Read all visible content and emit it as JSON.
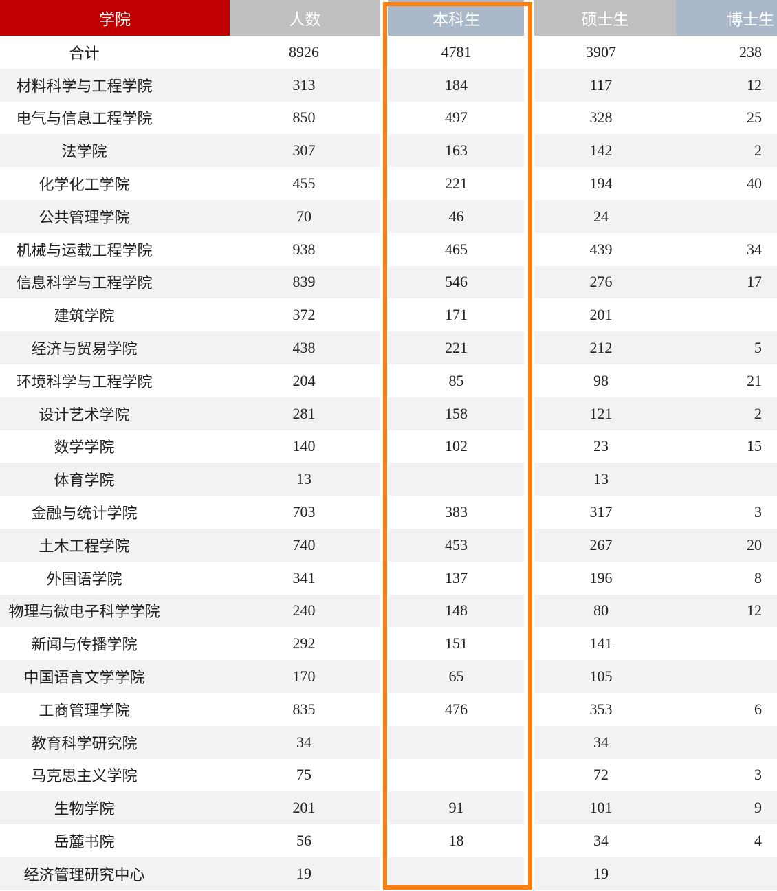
{
  "colors": {
    "header_college": "#c00000",
    "header_gray": "#bfbfbf",
    "header_blue": "#aab8ca",
    "highlight": "#ff7f0e",
    "row_alt": "#f2f2f2"
  },
  "headers": [
    "学院",
    "人数",
    "本科生",
    "硕士生",
    "博士生"
  ],
  "rows": [
    [
      "合计",
      "8926",
      "4781",
      "3907",
      "238"
    ],
    [
      "材料科学与工程学院",
      "313",
      "184",
      "117",
      "12"
    ],
    [
      "电气与信息工程学院",
      "850",
      "497",
      "328",
      "25"
    ],
    [
      "法学院",
      "307",
      "163",
      "142",
      "2"
    ],
    [
      "化学化工学院",
      "455",
      "221",
      "194",
      "40"
    ],
    [
      "公共管理学院",
      "70",
      "46",
      "24",
      ""
    ],
    [
      "机械与运载工程学院",
      "938",
      "465",
      "439",
      "34"
    ],
    [
      "信息科学与工程学院",
      "839",
      "546",
      "276",
      "17"
    ],
    [
      "建筑学院",
      "372",
      "171",
      "201",
      ""
    ],
    [
      "经济与贸易学院",
      "438",
      "221",
      "212",
      "5"
    ],
    [
      "环境科学与工程学院",
      "204",
      "85",
      "98",
      "21"
    ],
    [
      "设计艺术学院",
      "281",
      "158",
      "121",
      "2"
    ],
    [
      "数学学院",
      "140",
      "102",
      "23",
      "15"
    ],
    [
      "体育学院",
      "13",
      "",
      "13",
      ""
    ],
    [
      "金融与统计学院",
      "703",
      "383",
      "317",
      "3"
    ],
    [
      "土木工程学院",
      "740",
      "453",
      "267",
      "20"
    ],
    [
      "外国语学院",
      "341",
      "137",
      "196",
      "8"
    ],
    [
      "物理与微电子科学学院",
      "240",
      "148",
      "80",
      "12"
    ],
    [
      "新闻与传播学院",
      "292",
      "151",
      "141",
      ""
    ],
    [
      "中国语言文学学院",
      "170",
      "65",
      "105",
      ""
    ],
    [
      "工商管理学院",
      "835",
      "476",
      "353",
      "6"
    ],
    [
      "教育科学研究院",
      "34",
      "",
      "34",
      ""
    ],
    [
      "马克思主义学院",
      "75",
      "",
      "72",
      "3"
    ],
    [
      "生物学院",
      "201",
      "91",
      "101",
      "9"
    ],
    [
      "岳麓书院",
      "56",
      "18",
      "34",
      "4"
    ],
    [
      "经济管理研究中心",
      "19",
      "",
      "19",
      ""
    ]
  ]
}
